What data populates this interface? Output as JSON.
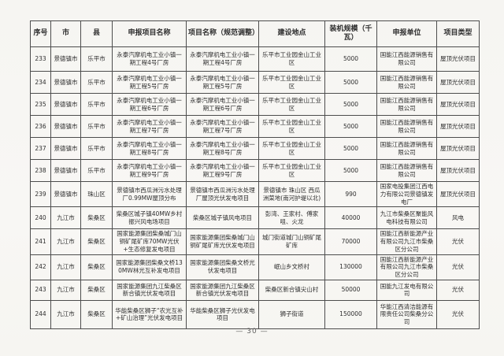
{
  "page": {
    "footer_page_number": "— 30 —"
  },
  "table": {
    "headers": [
      "序号",
      "市",
      "县",
      "申报项目名称",
      "项目名称（规范调整）",
      "建设地点",
      "装机规模（千瓦）",
      "申报单位",
      "项目类型"
    ],
    "rows": [
      {
        "no": "233",
        "city": "景德镇市",
        "county": "乐平市",
        "declared_name": "永泰汽摩机电工业小镇一期工程4号厂房",
        "adjusted_name": "永泰汽摩机电工业小镇一期工程4号厂房",
        "location": "乐平市工业园金山工业区",
        "capacity_kw": "5000",
        "applicant": "国能江西能源销售有限公司",
        "type": "屋顶光伏项目"
      },
      {
        "no": "234",
        "city": "景德镇市",
        "county": "乐平市",
        "declared_name": "永泰汽摩机电工业小镇一期工程5号厂房",
        "adjusted_name": "永泰汽摩机电工业小镇一期工程5号厂房",
        "location": "乐平市工业园金山工业区",
        "capacity_kw": "5000",
        "applicant": "国能江西能源销售有限公司",
        "type": "屋顶光伏项目"
      },
      {
        "no": "235",
        "city": "景德镇市",
        "county": "乐平市",
        "declared_name": "永泰汽摩机电工业小镇一期工程6号厂房",
        "adjusted_name": "永泰汽摩机电工业小镇一期工程6号厂房",
        "location": "乐平市工业园金山工业区",
        "capacity_kw": "5000",
        "applicant": "国能江西能源销售有限公司",
        "type": "屋顶光伏项目"
      },
      {
        "no": "236",
        "city": "景德镇市",
        "county": "乐平市",
        "declared_name": "永泰汽摩机电工业小镇一期工程7号厂房",
        "adjusted_name": "永泰汽摩机电工业小镇一期工程7号厂房",
        "location": "乐平市工业园金山工业区",
        "capacity_kw": "5000",
        "applicant": "国能江西能源销售有限公司",
        "type": "屋顶光伏项目"
      },
      {
        "no": "237",
        "city": "景德镇市",
        "county": "乐平市",
        "declared_name": "永泰汽摩机电工业小镇一期工程8号厂房",
        "adjusted_name": "永泰汽摩机电工业小镇一期工程8号厂房",
        "location": "乐平市工业园金山工业区",
        "capacity_kw": "5000",
        "applicant": "国能江西能源销售有限公司",
        "type": "屋顶光伏项目"
      },
      {
        "no": "238",
        "city": "景德镇市",
        "county": "乐平市",
        "declared_name": "永泰汽摩机电工业小镇一期工程9号厂房",
        "adjusted_name": "永泰汽摩机电工业小镇一期工程9号厂房",
        "location": "乐平市工业园金山工业区",
        "capacity_kw": "5000",
        "applicant": "国能江西能源销售有限公司",
        "type": "屋顶光伏项目"
      },
      {
        "no": "239",
        "city": "景德镇市",
        "county": "珠山区",
        "declared_name": "景德镇市西瓜洲污水处理厂0.99MW屋顶分布",
        "adjusted_name": "景德镇市西瓜洲污水处理厂屋顶光伏发电项目",
        "location": "景德镇市 珠山区 西瓜洲菜地(南河护堤以北)",
        "capacity_kw": "990",
        "applicant": "国家电投集团江西电力有限公司景德镇发电厂",
        "type": "屋顶光伏项目"
      },
      {
        "no": "240",
        "city": "九江市",
        "county": "柴桑区",
        "declared_name": "柴桑区城子镇40MW乡村振兴风电场项目",
        "adjusted_name": "柴桑区城子镇风电项目",
        "location": "彭湾、王家村、傅家咀、火龙",
        "capacity_kw": "40000",
        "applicant": "九江市柴桑区聚能风电科技有限公司",
        "type": "风电"
      },
      {
        "no": "241",
        "city": "九江市",
        "county": "柴桑区",
        "declared_name": "国家能源集团柴桑城门山铜矿尾矿库70MW光伏+生态修复发电项目",
        "adjusted_name": "国家能源集团柴桑城门山铜矿尾矿库光伏发电项目",
        "location": "城门街道城门山铜矿尾矿库",
        "capacity_kw": "70000",
        "applicant": "国能江西新能源产业有限公司九江市柴桑区分公司",
        "type": "光伏"
      },
      {
        "no": "242",
        "city": "九江市",
        "county": "柴桑区",
        "declared_name": "国家能源集团柴桑文桥130MW林光互补发电项目",
        "adjusted_name": "国家能源集团柴桑文桥光伏发电项目",
        "location": "岷山乡文桥村",
        "capacity_kw": "130000",
        "applicant": "国能江西新能源产业有限公司九江市柴桑区分公司",
        "type": "光伏"
      },
      {
        "no": "243",
        "city": "九江市",
        "county": "柴桑区",
        "declared_name": "国家能源集团九江柴桑区新合镇光伏发电项目",
        "adjusted_name": "国家能源集团九江柴桑区新合镇光伏发电项目",
        "location": "柴桑区新合镇尖山村",
        "capacity_kw": "50000",
        "applicant": "国能九江发电有限公司",
        "type": "光伏"
      },
      {
        "no": "244",
        "city": "九江市",
        "county": "柴桑区",
        "declared_name": "华能柴桑区狮子“农光互补+矿山治理”光伏发电项目",
        "adjusted_name": "华能柴桑区狮子光伏发电项目",
        "location": "狮子街道",
        "capacity_kw": "150000",
        "applicant": "华能江西清洁能源有限责任公司柴桑分公司",
        "type": "光伏"
      }
    ]
  }
}
